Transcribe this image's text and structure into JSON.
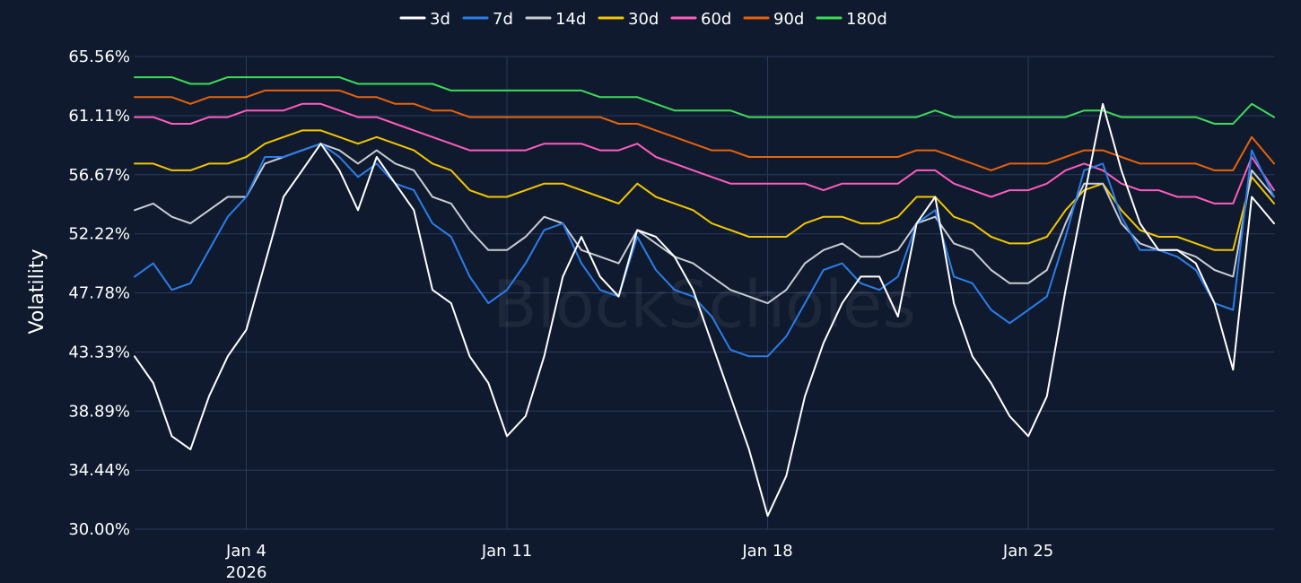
{
  "watermark": "BlockScholes",
  "chart_data": {
    "type": "line",
    "title": "",
    "xlabel": "",
    "ylabel": "Volatility",
    "grid": true,
    "legend_position": "top-center",
    "ylim": [
      30.0,
      65.56
    ],
    "y_ticks": [
      "30.00%",
      "34.44%",
      "38.89%",
      "43.33%",
      "47.78%",
      "52.22%",
      "56.67%",
      "61.11%",
      "65.56%"
    ],
    "y_tick_values": [
      30.0,
      34.44,
      38.89,
      43.33,
      47.78,
      52.22,
      56.67,
      61.11,
      65.56
    ],
    "xlim": [
      0,
      30.6
    ],
    "x_ticks": [
      {
        "label": "Jan 4",
        "sublabel": "2026",
        "value": 3
      },
      {
        "label": "Jan 11",
        "sublabel": "",
        "value": 10
      },
      {
        "label": "Jan 18",
        "sublabel": "",
        "value": 17
      },
      {
        "label": "Jan 25",
        "sublabel": "",
        "value": 24
      }
    ],
    "x": [
      0,
      0.5,
      1,
      1.5,
      2,
      2.5,
      3,
      3.5,
      4,
      4.5,
      5,
      5.5,
      6,
      6.5,
      7,
      7.5,
      8,
      8.5,
      9,
      9.5,
      10,
      10.5,
      11,
      11.5,
      12,
      12.5,
      13,
      13.5,
      14,
      14.5,
      15,
      15.5,
      16,
      16.5,
      17,
      17.5,
      18,
      18.5,
      19,
      19.5,
      20,
      20.5,
      21,
      21.5,
      22,
      22.5,
      23,
      23.5,
      24,
      24.5,
      25,
      25.5,
      26,
      26.5,
      27,
      27.5,
      28,
      28.5,
      29,
      29.5,
      30,
      30.6
    ],
    "series": [
      {
        "name": "3d",
        "color": "#ffffff",
        "values": [
          43.0,
          41.0,
          37.0,
          36.0,
          40.0,
          43.0,
          45.0,
          50.0,
          55.0,
          57.0,
          59.0,
          57.0,
          54.0,
          58.0,
          56.0,
          54.0,
          48.0,
          47.0,
          43.0,
          41.0,
          37.0,
          38.5,
          43.0,
          49.0,
          52.0,
          49.0,
          47.5,
          52.5,
          52.0,
          50.5,
          48.0,
          44.0,
          40.0,
          36.0,
          31.0,
          34.0,
          40.0,
          44.0,
          47.0,
          49.0,
          49.0,
          46.0,
          53.0,
          55.0,
          47.0,
          43.0,
          41.0,
          38.5,
          37.0,
          40.0,
          48.0,
          55.0,
          62.0,
          57.0,
          53.0,
          51.0,
          51.0,
          50.0,
          47.0,
          42.0,
          55.0,
          53.0
        ]
      },
      {
        "name": "7d",
        "color": "#2b7de9",
        "values": [
          49.0,
          50.0,
          48.0,
          48.5,
          51.0,
          53.5,
          55.0,
          58.0,
          58.0,
          58.5,
          59.0,
          58.0,
          56.5,
          57.5,
          56.0,
          55.5,
          53.0,
          52.0,
          49.0,
          47.0,
          48.0,
          50.0,
          52.5,
          53.0,
          50.0,
          48.0,
          47.5,
          52.0,
          49.5,
          48.0,
          47.5,
          46.0,
          43.5,
          43.0,
          43.0,
          44.5,
          47.0,
          49.5,
          50.0,
          48.5,
          48.0,
          49.0,
          53.0,
          54.0,
          49.0,
          48.5,
          46.5,
          45.5,
          46.5,
          47.5,
          52.0,
          57.0,
          57.5,
          53.5,
          51.0,
          51.0,
          50.5,
          49.5,
          47.0,
          46.5,
          58.5,
          55.0
        ]
      },
      {
        "name": "14d",
        "color": "#c8ccd4",
        "values": [
          54.0,
          54.5,
          53.5,
          53.0,
          54.0,
          55.0,
          55.0,
          57.5,
          58.0,
          58.5,
          59.0,
          58.5,
          57.5,
          58.5,
          57.5,
          57.0,
          55.0,
          54.5,
          52.5,
          51.0,
          51.0,
          52.0,
          53.5,
          53.0,
          51.0,
          50.5,
          50.0,
          52.5,
          51.5,
          50.5,
          50.0,
          49.0,
          48.0,
          47.5,
          47.0,
          48.0,
          50.0,
          51.0,
          51.5,
          50.5,
          50.5,
          51.0,
          53.0,
          53.5,
          51.5,
          51.0,
          49.5,
          48.5,
          48.5,
          49.5,
          53.0,
          56.0,
          56.0,
          53.0,
          51.5,
          51.0,
          51.0,
          50.5,
          49.5,
          49.0,
          57.0,
          55.0
        ]
      },
      {
        "name": "30d",
        "color": "#f2c500",
        "values": [
          57.5,
          57.5,
          57.0,
          57.0,
          57.5,
          57.5,
          58.0,
          59.0,
          59.5,
          60.0,
          60.0,
          59.5,
          59.0,
          59.5,
          59.0,
          58.5,
          57.5,
          57.0,
          55.5,
          55.0,
          55.0,
          55.5,
          56.0,
          56.0,
          55.5,
          55.0,
          54.5,
          56.0,
          55.0,
          54.5,
          54.0,
          53.0,
          52.5,
          52.0,
          52.0,
          52.0,
          53.0,
          53.5,
          53.5,
          53.0,
          53.0,
          53.5,
          55.0,
          55.0,
          53.5,
          53.0,
          52.0,
          51.5,
          51.5,
          52.0,
          54.0,
          55.5,
          56.0,
          54.0,
          52.5,
          52.0,
          52.0,
          51.5,
          51.0,
          51.0,
          56.5,
          54.5
        ]
      },
      {
        "name": "60d",
        "color": "#ff5cbc",
        "values": [
          61.0,
          61.0,
          60.5,
          60.5,
          61.0,
          61.0,
          61.5,
          61.5,
          61.5,
          62.0,
          62.0,
          61.5,
          61.0,
          61.0,
          60.5,
          60.0,
          59.5,
          59.0,
          58.5,
          58.5,
          58.5,
          58.5,
          59.0,
          59.0,
          59.0,
          58.5,
          58.5,
          59.0,
          58.0,
          57.5,
          57.0,
          56.5,
          56.0,
          56.0,
          56.0,
          56.0,
          56.0,
          55.5,
          56.0,
          56.0,
          56.0,
          56.0,
          57.0,
          57.0,
          56.0,
          55.5,
          55.0,
          55.5,
          55.5,
          56.0,
          57.0,
          57.5,
          57.0,
          56.0,
          55.5,
          55.5,
          55.0,
          55.0,
          54.5,
          54.5,
          58.0,
          55.5
        ]
      },
      {
        "name": "90d",
        "color": "#e8620a",
        "values": [
          62.5,
          62.5,
          62.5,
          62.0,
          62.5,
          62.5,
          62.5,
          63.0,
          63.0,
          63.0,
          63.0,
          63.0,
          62.5,
          62.5,
          62.0,
          62.0,
          61.5,
          61.5,
          61.0,
          61.0,
          61.0,
          61.0,
          61.0,
          61.0,
          61.0,
          61.0,
          60.5,
          60.5,
          60.0,
          59.5,
          59.0,
          58.5,
          58.5,
          58.0,
          58.0,
          58.0,
          58.0,
          58.0,
          58.0,
          58.0,
          58.0,
          58.0,
          58.5,
          58.5,
          58.0,
          57.5,
          57.0,
          57.5,
          57.5,
          57.5,
          58.0,
          58.5,
          58.5,
          58.0,
          57.5,
          57.5,
          57.5,
          57.5,
          57.0,
          57.0,
          59.5,
          57.5
        ]
      },
      {
        "name": "180d",
        "color": "#3ddc57",
        "values": [
          64.0,
          64.0,
          64.0,
          63.5,
          63.5,
          64.0,
          64.0,
          64.0,
          64.0,
          64.0,
          64.0,
          64.0,
          63.5,
          63.5,
          63.5,
          63.5,
          63.5,
          63.0,
          63.0,
          63.0,
          63.0,
          63.0,
          63.0,
          63.0,
          63.0,
          62.5,
          62.5,
          62.5,
          62.0,
          61.5,
          61.5,
          61.5,
          61.5,
          61.0,
          61.0,
          61.0,
          61.0,
          61.0,
          61.0,
          61.0,
          61.0,
          61.0,
          61.0,
          61.5,
          61.0,
          61.0,
          61.0,
          61.0,
          61.0,
          61.0,
          61.0,
          61.5,
          61.5,
          61.0,
          61.0,
          61.0,
          61.0,
          61.0,
          60.5,
          60.5,
          62.0,
          61.0
        ]
      }
    ]
  }
}
